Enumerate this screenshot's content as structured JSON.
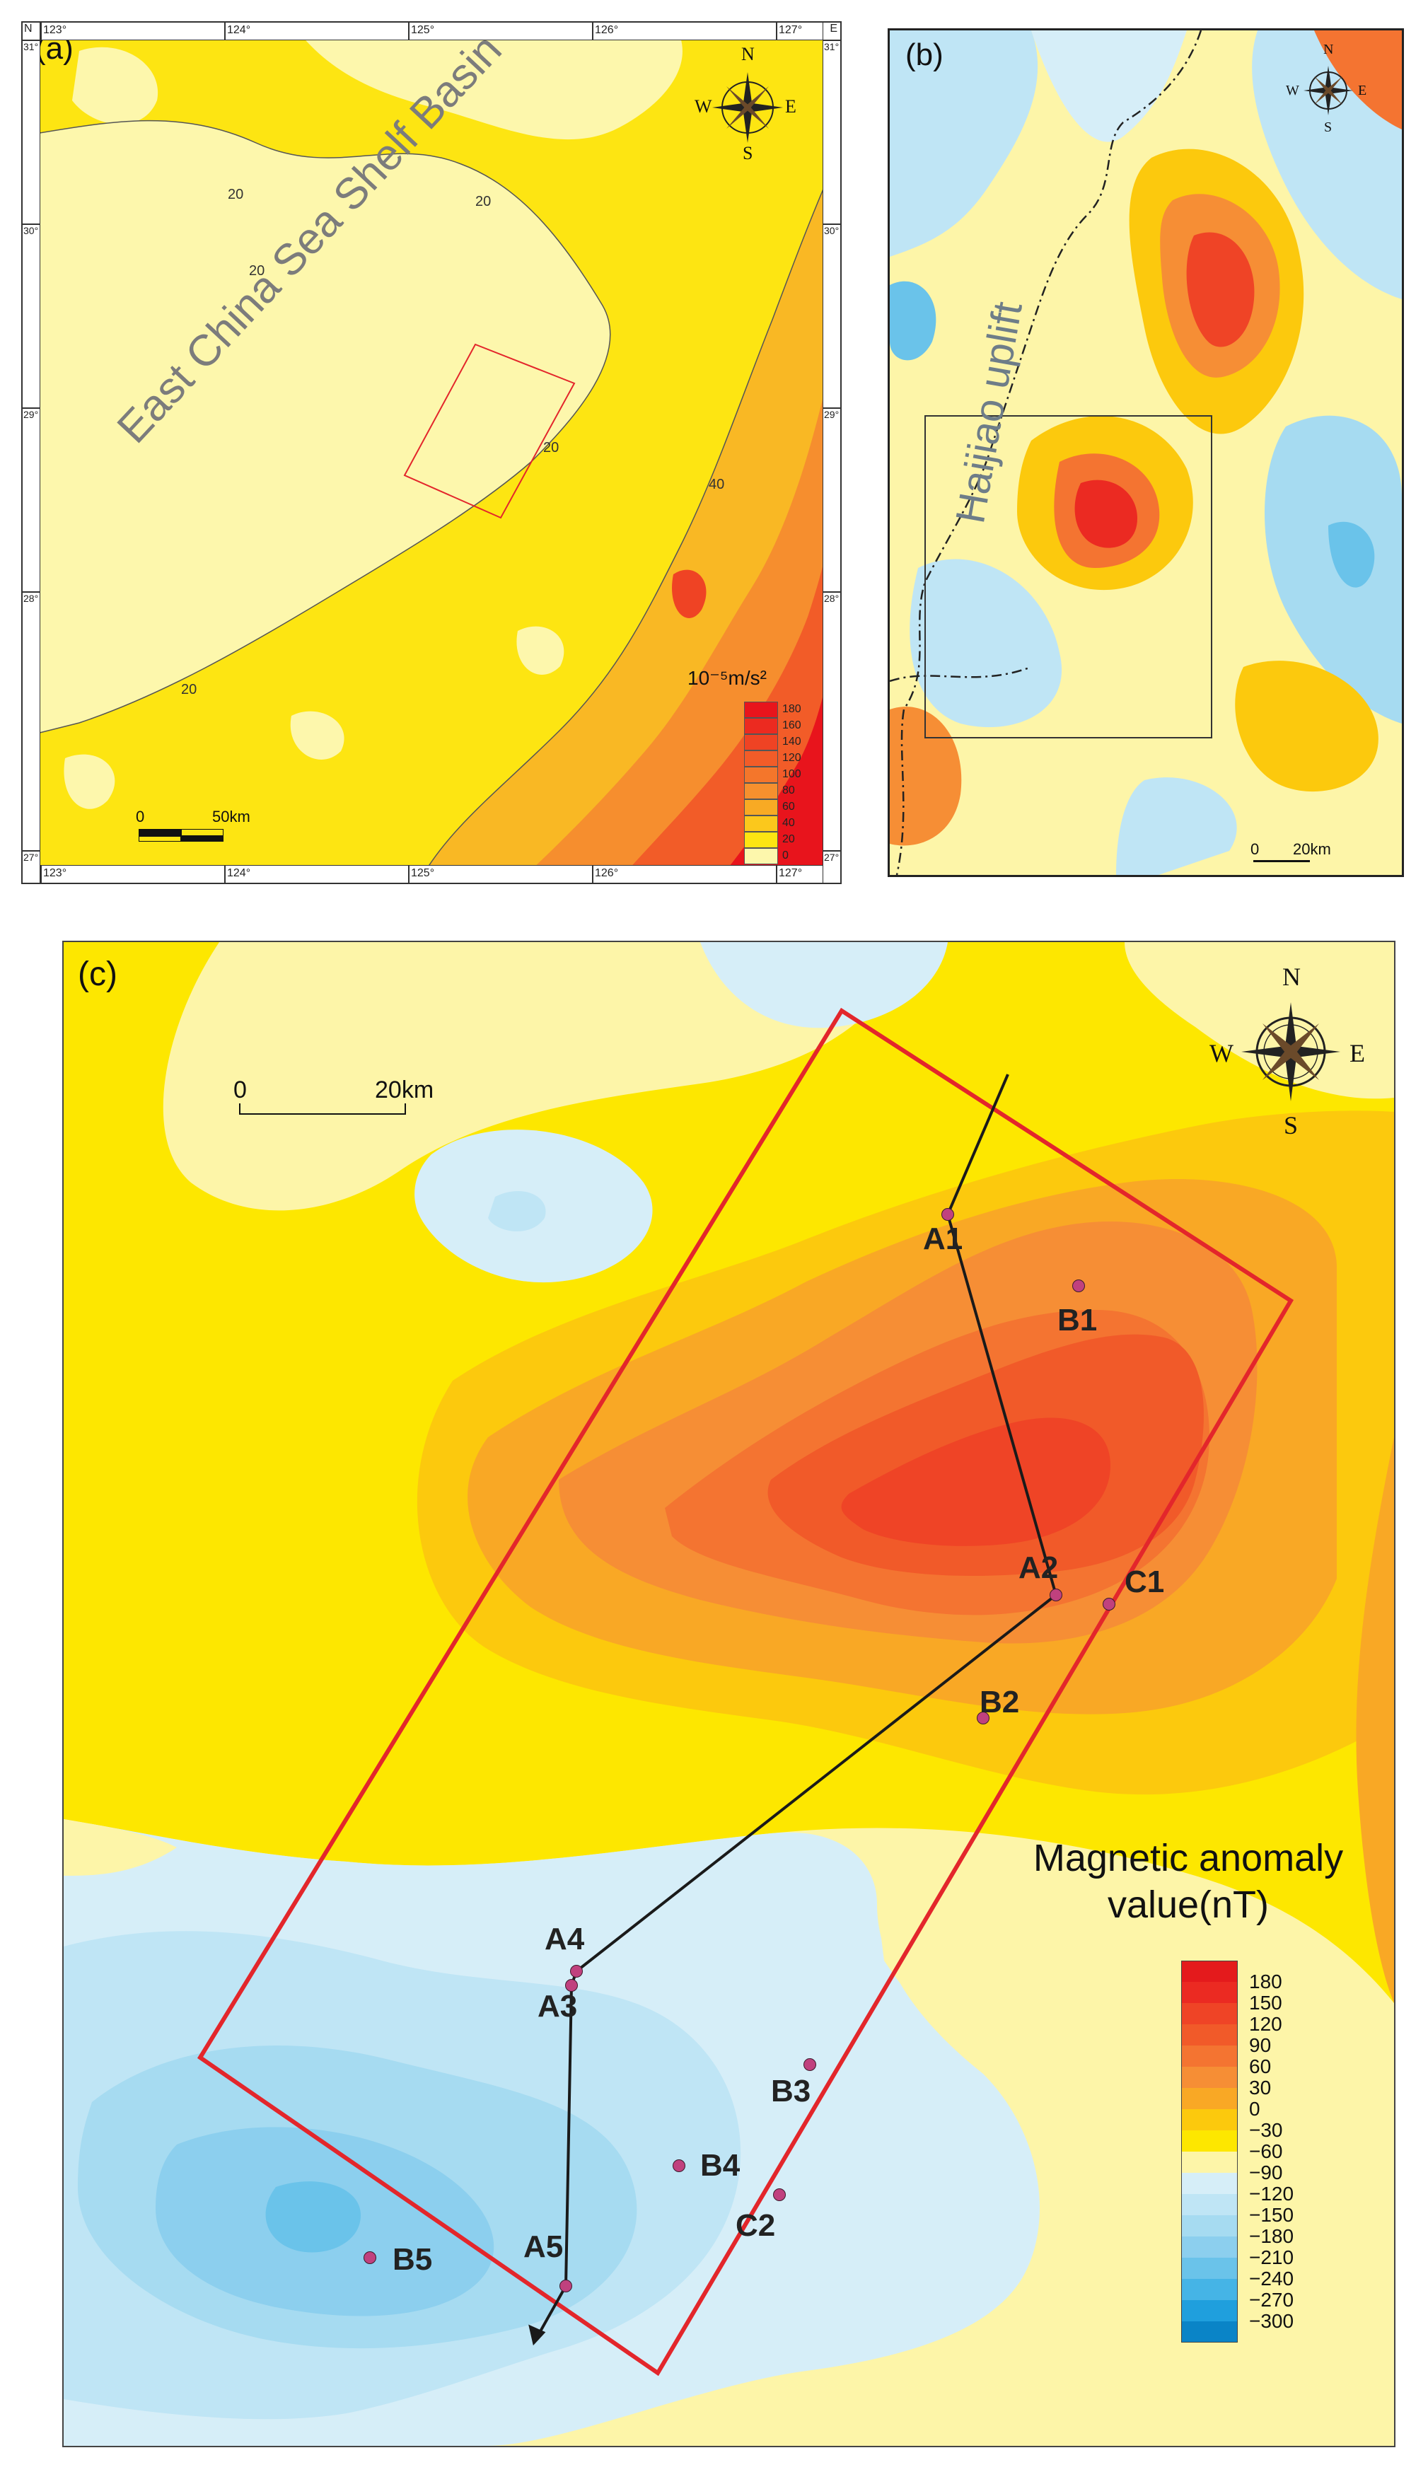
{
  "panel_a": {
    "label": "(a)",
    "basin_label": "East China Sea Shelf Basin",
    "lon_ticks": [
      "123°",
      "124°",
      "125°",
      "126°",
      "127°"
    ],
    "lat_ticks": [
      "31°",
      "30°",
      "29°",
      "28°",
      "27°"
    ],
    "corner_N": "N",
    "corner_E": "E",
    "contour_labels": [
      "20",
      "20",
      "20",
      "20",
      "40",
      "20"
    ],
    "legend_title": "10⁻⁵m/s²",
    "legend_values": [
      "180",
      "160",
      "140",
      "120",
      "100",
      "80",
      "60",
      "40",
      "20",
      "0"
    ],
    "legend_colors": [
      "#e8141c",
      "#ec2a20",
      "#ef4324",
      "#f25c28",
      "#f4762b",
      "#f6902e",
      "#f8aa24",
      "#fbc81c",
      "#fde512",
      "#fdf7ac"
    ],
    "scale_zero": "0",
    "scale_label": "50km",
    "compass": {
      "n": "N",
      "s": "S",
      "e": "E",
      "w": "W"
    }
  },
  "panel_b": {
    "label": "(b)",
    "feature_label": "Haijiao uplift",
    "scale_zero": "0",
    "scale_label": "20km",
    "compass": {
      "n": "N",
      "s": "S",
      "e": "E",
      "w": "W"
    }
  },
  "panel_c": {
    "label": "(c)",
    "scale_zero": "0",
    "scale_label": "20km",
    "compass": {
      "n": "N",
      "s": "S",
      "e": "E",
      "w": "W"
    },
    "legend_title": "Magnetic anomaly value(nT)",
    "legend_values": [
      "180",
      "150",
      "120",
      "90",
      "60",
      "30",
      "0",
      "−30",
      "−60",
      "−90",
      "−120",
      "−150",
      "−180",
      "−210",
      "−240",
      "−270",
      "−300"
    ],
    "legend_colors": [
      "#e41a1c",
      "#eb2a22",
      "#ef4426",
      "#f15a29",
      "#f47431",
      "#f68e35",
      "#f9a825",
      "#fcc90d",
      "#fde700",
      "#fdf5a8",
      "#d6eef8",
      "#bfe5f5",
      "#a6dbf1",
      "#8ccfee",
      "#6ac3ea",
      "#45b4e6",
      "#1f9fdd",
      "#0a84c7"
    ],
    "points": [
      {
        "id": "A1",
        "kind": "well"
      },
      {
        "id": "A2",
        "kind": "well"
      },
      {
        "id": "A3",
        "kind": "well"
      },
      {
        "id": "A4",
        "kind": "well"
      },
      {
        "id": "A5",
        "kind": "well"
      },
      {
        "id": "B1",
        "kind": "site"
      },
      {
        "id": "B2",
        "kind": "site"
      },
      {
        "id": "B3",
        "kind": "site"
      },
      {
        "id": "B4",
        "kind": "site"
      },
      {
        "id": "B5",
        "kind": "site"
      },
      {
        "id": "C1",
        "kind": "site"
      },
      {
        "id": "C2",
        "kind": "site"
      }
    ]
  },
  "colors": {
    "frame_red": "#e3262b",
    "line_black": "#1a1a1a",
    "point_fill": "#c0417e"
  }
}
